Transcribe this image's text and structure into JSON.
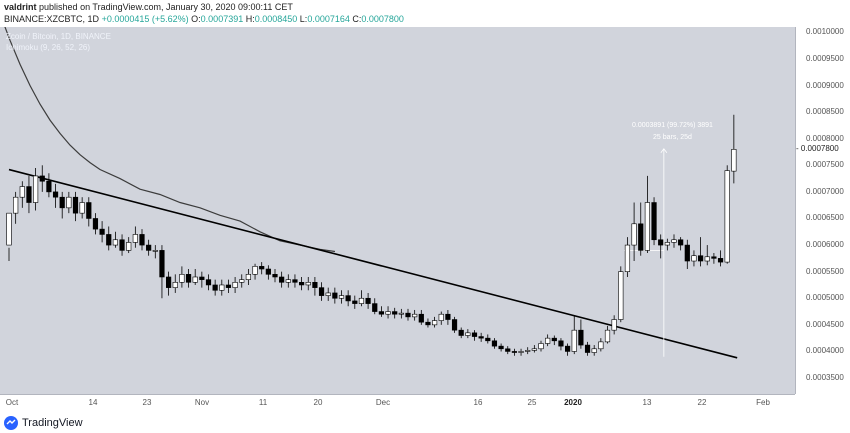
{
  "header": {
    "author": "valdrint",
    "published_text": "published on TradingView.com, January 30, 2020 09:00:11 CET",
    "symbol": "BINANCE:XZCBTC",
    "interval": "1D",
    "change": "+0.0000415 (+5.62%)",
    "o_label": "O:",
    "o_value": "0.0007391",
    "h_label": "H:",
    "h_value": "0.0008450",
    "l_label": "L:",
    "l_value": "0.0007164",
    "c_label": "C:",
    "c_value": "0.0007800"
  },
  "legend": {
    "title": "Zcoin / Bitcoin, 1D, BINANCE",
    "indicator": "Ichimoku (9, 26, 52, 26)"
  },
  "measure": {
    "line1": "0.0003891 (99.72%) 3891",
    "line2": "25 bars, 25d"
  },
  "footer": {
    "brand": "TradingView"
  },
  "colors": {
    "up": "#ffffff",
    "down": "#000000",
    "background": "#d1d4dc",
    "ma": "#3c3c3c",
    "trendline": "#000000"
  },
  "chart_data": {
    "type": "candlestick",
    "title": "Zcoin / Bitcoin, 1D, BINANCE",
    "y_ticks": [
      "0.0010000",
      "0.0009500",
      "0.0009000",
      "0.0008500",
      "0.0008000",
      "0.0007500",
      "0.0007000",
      "0.0006500",
      "0.0006000",
      "0.0005500",
      "0.0005000",
      "0.0004500",
      "0.0004000",
      "0.0003500"
    ],
    "ylim": [
      0.00032,
      0.00101
    ],
    "x_ticks": [
      "Oct",
      "14",
      "23",
      "Nov",
      "11",
      "20",
      "Dec",
      "16",
      "25",
      "2020",
      "13",
      "22",
      "Feb"
    ],
    "x_bold": "2020",
    "last_price": "0.0007800",
    "candles": [
      [
        0.0006,
        0.00066,
        0.000595,
        0.00057
      ],
      [
        0.00066,
        0.00069,
        0.0007,
        0.00064
      ],
      [
        0.00069,
        0.00071,
        0.00072,
        0.00067
      ],
      [
        0.00071,
        0.00068,
        0.00073,
        0.00066
      ],
      [
        0.00068,
        0.00073,
        0.000745,
        0.000665
      ],
      [
        0.00073,
        0.00072,
        0.00075,
        0.0007
      ],
      [
        0.00072,
        0.0007,
        0.000735,
        0.00069
      ],
      [
        0.0007,
        0.00069,
        0.000715,
        0.00067
      ],
      [
        0.00069,
        0.00067,
        0.0007,
        0.00065
      ],
      [
        0.00067,
        0.00069,
        0.0007,
        0.00066
      ],
      [
        0.00069,
        0.00066,
        0.0007,
        0.000645
      ],
      [
        0.00066,
        0.00068,
        0.00069,
        0.00065
      ],
      [
        0.00068,
        0.00065,
        0.00069,
        0.000635
      ],
      [
        0.00065,
        0.00063,
        0.00066,
        0.00062
      ],
      [
        0.00063,
        0.00062,
        0.000645,
        0.000605
      ],
      [
        0.00062,
        0.0006,
        0.000635,
        0.00059
      ],
      [
        0.0006,
        0.00061,
        0.000625,
        0.000595
      ],
      [
        0.00061,
        0.00059,
        0.00062,
        0.00058
      ],
      [
        0.00059,
        0.000605,
        0.000615,
        0.000585
      ],
      [
        0.000605,
        0.00062,
        0.000635,
        0.000595
      ],
      [
        0.00062,
        0.0006,
        0.00063,
        0.00059
      ],
      [
        0.0006,
        0.00059,
        0.00061,
        0.00058
      ],
      [
        0.00059,
        0.00059,
        0.0006,
        0.000575
      ],
      [
        0.00059,
        0.00054,
        0.0006,
        0.0005
      ],
      [
        0.00054,
        0.00052,
        0.00055,
        0.000505
      ],
      [
        0.00052,
        0.00053,
        0.000545,
        0.00051
      ],
      [
        0.00053,
        0.000545,
        0.00056,
        0.00052
      ],
      [
        0.000545,
        0.00053,
        0.000555,
        0.00052
      ],
      [
        0.00053,
        0.00054,
        0.000555,
        0.000525
      ],
      [
        0.00054,
        0.000535,
        0.00055,
        0.00052
      ],
      [
        0.000535,
        0.000525,
        0.000545,
        0.000515
      ],
      [
        0.000525,
        0.000515,
        0.000535,
        0.000505
      ],
      [
        0.000515,
        0.000525,
        0.000535,
        0.000505
      ],
      [
        0.000525,
        0.00052,
        0.000535,
        0.00051
      ],
      [
        0.00052,
        0.00053,
        0.00054,
        0.00051
      ],
      [
        0.00053,
        0.000535,
        0.000545,
        0.00052
      ],
      [
        0.000535,
        0.000545,
        0.000555,
        0.000525
      ],
      [
        0.000545,
        0.00056,
        0.000565,
        0.000535
      ],
      [
        0.00056,
        0.000555,
        0.000568,
        0.000545
      ],
      [
        0.000555,
        0.000545,
        0.000562,
        0.000535
      ],
      [
        0.000545,
        0.00054,
        0.000555,
        0.00053
      ],
      [
        0.00054,
        0.00053,
        0.00055,
        0.00052
      ],
      [
        0.00053,
        0.000535,
        0.000545,
        0.00052
      ],
      [
        0.000535,
        0.00053,
        0.000545,
        0.00052
      ],
      [
        0.00053,
        0.000525,
        0.00054,
        0.000515
      ],
      [
        0.000525,
        0.00053,
        0.00054,
        0.000515
      ],
      [
        0.00053,
        0.00052,
        0.00054,
        0.000505
      ],
      [
        0.00052,
        0.000505,
        0.00053,
        0.000495
      ],
      [
        0.000505,
        0.00051,
        0.00052,
        0.000495
      ],
      [
        0.00051,
        0.0005,
        0.00052,
        0.00049
      ],
      [
        0.0005,
        0.000505,
        0.000515,
        0.00049
      ],
      [
        0.000505,
        0.000495,
        0.000515,
        0.000485
      ],
      [
        0.000495,
        0.00049,
        0.000505,
        0.00048
      ],
      [
        0.00049,
        0.0005,
        0.000515,
        0.000485
      ],
      [
        0.0005,
        0.00049,
        0.00051,
        0.00048
      ],
      [
        0.00049,
        0.000475,
        0.0005,
        0.00047
      ],
      [
        0.000475,
        0.00047,
        0.000485,
        0.000465
      ],
      [
        0.00047,
        0.000475,
        0.000485,
        0.000462
      ],
      [
        0.000475,
        0.00047,
        0.000482,
        0.000462
      ],
      [
        0.00047,
        0.000472,
        0.00048,
        0.000462
      ],
      [
        0.000472,
        0.000465,
        0.00048,
        0.000458
      ],
      [
        0.000465,
        0.00047,
        0.000478,
        0.000458
      ],
      [
        0.00047,
        0.000455,
        0.000478,
        0.00045
      ],
      [
        0.000455,
        0.00045,
        0.000462,
        0.000445
      ],
      [
        0.00045,
        0.000458,
        0.000465,
        0.000445
      ],
      [
        0.000458,
        0.00047,
        0.000475,
        0.00045
      ],
      [
        0.00047,
        0.00046,
        0.000478,
        0.00045
      ],
      [
        0.00046,
        0.00044,
        0.000465,
        0.000435
      ],
      [
        0.00044,
        0.00043,
        0.000445,
        0.000425
      ],
      [
        0.00043,
        0.000435,
        0.000442,
        0.000425
      ],
      [
        0.000435,
        0.000428,
        0.00044,
        0.00042
      ],
      [
        0.000428,
        0.000425,
        0.000435,
        0.000418
      ],
      [
        0.000425,
        0.00042,
        0.000432,
        0.000415
      ],
      [
        0.00042,
        0.00041,
        0.000425,
        0.000405
      ],
      [
        0.00041,
        0.000405,
        0.000415,
        0.0004
      ],
      [
        0.000405,
        0.0004,
        0.00041,
        0.000395
      ],
      [
        0.0004,
        0.000398,
        0.000405,
        0.000392
      ],
      [
        0.000398,
        0.0004,
        0.000405,
        0.000392
      ],
      [
        0.0004,
        0.000402,
        0.000408,
        0.000395
      ],
      [
        0.000402,
        0.000405,
        0.000412,
        0.000398
      ],
      [
        0.000405,
        0.000415,
        0.00042,
        0.0004
      ],
      [
        0.000415,
        0.000425,
        0.000432,
        0.00041
      ],
      [
        0.000425,
        0.00042,
        0.00043,
        0.000412
      ],
      [
        0.00042,
        0.00041,
        0.000425,
        0.000402
      ],
      [
        0.00041,
        0.0004,
        0.000415,
        0.000392
      ],
      [
        0.0004,
        0.00044,
        0.000468,
        0.000395
      ],
      [
        0.00044,
        0.000412,
        0.00046,
        0.000405
      ],
      [
        0.000412,
        0.000398,
        0.000418,
        0.000392
      ],
      [
        0.000398,
        0.000405,
        0.000412,
        0.000392
      ],
      [
        0.000405,
        0.000418,
        0.000425,
        0.0004
      ],
      [
        0.000418,
        0.00044,
        0.000448,
        0.000415
      ],
      [
        0.00044,
        0.00046,
        0.000468,
        0.000432
      ],
      [
        0.00046,
        0.00055,
        0.00056,
        0.000455
      ],
      [
        0.00055,
        0.0006,
        0.000615,
        0.00054
      ],
      [
        0.0006,
        0.00064,
        0.00068,
        0.00057
      ],
      [
        0.00064,
        0.00059,
        0.00068,
        0.00058
      ],
      [
        0.00059,
        0.00068,
        0.00073,
        0.000585
      ],
      [
        0.00068,
        0.00061,
        0.00069,
        0.0006
      ],
      [
        0.00061,
        0.0006,
        0.00062,
        0.000575
      ],
      [
        0.0006,
        0.000605,
        0.000612,
        0.00059
      ],
      [
        0.000605,
        0.00061,
        0.00062,
        0.000595
      ],
      [
        0.00061,
        0.0006,
        0.000615,
        0.00059
      ],
      [
        0.0006,
        0.00057,
        0.00061,
        0.000555
      ],
      [
        0.00057,
        0.00058,
        0.00059,
        0.00056
      ],
      [
        0.00058,
        0.00057,
        0.000615,
        0.00056
      ],
      [
        0.00057,
        0.000578,
        0.0006,
        0.000562
      ],
      [
        0.000578,
        0.000575,
        0.000585,
        0.000565
      ],
      [
        0.000575,
        0.000568,
        0.00059,
        0.00056
      ],
      [
        0.000568,
        0.00074,
        0.00075,
        0.000565
      ],
      [
        0.000739,
        0.00078,
        0.000845,
        0.000716
      ]
    ],
    "moving_average": [
      [
        0,
        0.001035
      ],
      [
        10,
        0.000985
      ],
      [
        20,
        0.00094
      ],
      [
        30,
        0.0009
      ],
      [
        40,
        0.000865
      ],
      [
        50,
        0.000835
      ],
      [
        60,
        0.00081
      ],
      [
        70,
        0.000788
      ],
      [
        80,
        0.00077
      ],
      [
        90,
        0.000755
      ],
      [
        100,
        0.000742
      ],
      [
        120,
        0.000725
      ],
      [
        140,
        0.000705
      ],
      [
        160,
        0.000695
      ],
      [
        180,
        0.00068
      ],
      [
        200,
        0.00067
      ],
      [
        220,
        0.000656
      ],
      [
        240,
        0.000645
      ],
      [
        260,
        0.000625
      ],
      [
        280,
        0.000608
      ],
      [
        300,
        0.0006
      ],
      [
        320,
        0.000592
      ],
      [
        335,
        0.000588
      ]
    ],
    "trendline": {
      "from": [
        0,
        0.000742
      ],
      "to": [
        109.5,
        0.000388
      ]
    },
    "measure_tool": {
      "from_idx": 94,
      "to_idx": 109,
      "from_price": 0.00039,
      "to_price": 0.000781,
      "base_price": 0.00059
    }
  }
}
